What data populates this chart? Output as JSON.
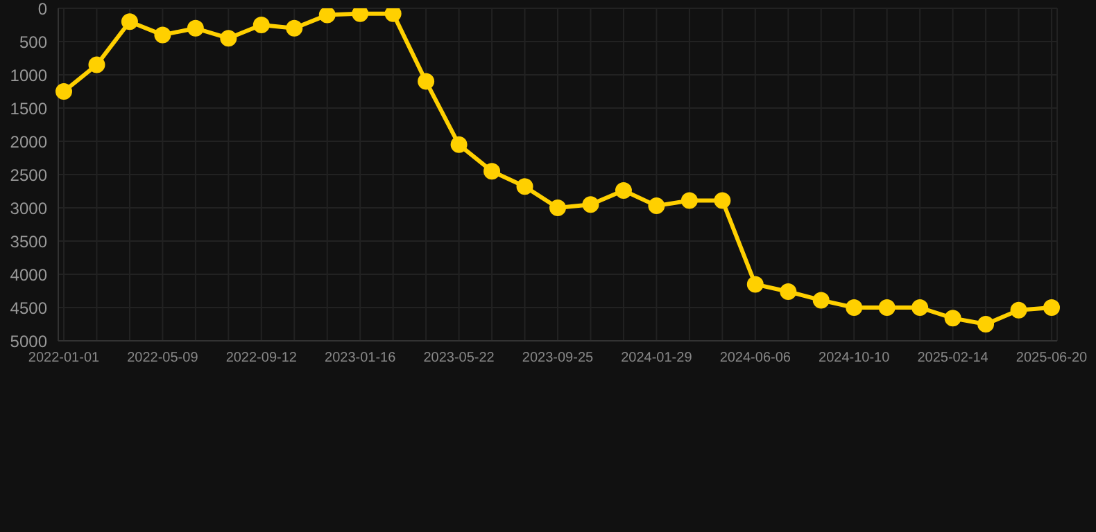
{
  "chart_data": {
    "type": "line",
    "categories": [
      "2022-01-01",
      null,
      null,
      "2022-05-09",
      null,
      null,
      "2022-09-12",
      null,
      null,
      "2023-01-16",
      null,
      null,
      "2023-05-22",
      null,
      null,
      "2023-09-25",
      null,
      null,
      "2024-01-29",
      null,
      null,
      "2024-06-06",
      null,
      null,
      "2024-10-10",
      null,
      null,
      "2025-02-14",
      null,
      null,
      "2025-06-20"
    ],
    "series": [
      {
        "color": "#ffd000",
        "values": [
          1250,
          850,
          200,
          400,
          300,
          450,
          250,
          300,
          100,
          80,
          80,
          1100,
          2050,
          2450,
          2680,
          3000,
          2950,
          2740,
          2970,
          2890,
          2890,
          4150,
          4260,
          4390,
          4500,
          4500,
          4500,
          4660,
          4750,
          4540,
          4500
        ]
      }
    ],
    "ylim": [
      5000,
      0
    ],
    "yticks": [
      0,
      500,
      1000,
      1500,
      2000,
      2500,
      3000,
      3500,
      4000,
      4500,
      5000
    ],
    "grid": true,
    "marker": "circle"
  }
}
